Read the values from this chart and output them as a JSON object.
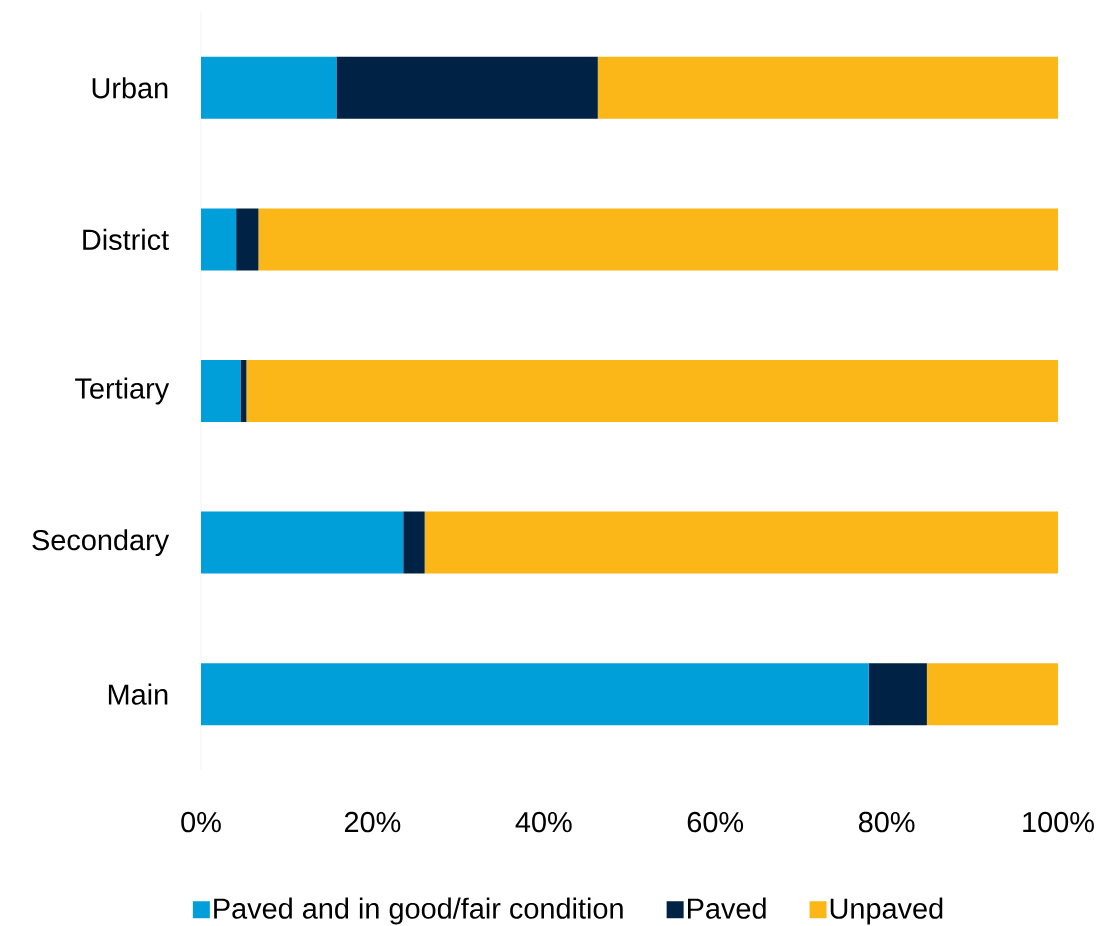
{
  "chart_data": {
    "type": "bar",
    "orientation": "horizontal",
    "stacked": true,
    "categories": [
      "Urban",
      "District",
      "Tertiary",
      "Secondary",
      "Main"
    ],
    "series": [
      {
        "name": "Paved and in good/fair condition",
        "color": "#009fda",
        "values": [
          15.8,
          4.1,
          4.6,
          23.6,
          77.9
        ]
      },
      {
        "name": "Paved",
        "color": "#002244",
        "values": [
          30.5,
          2.6,
          0.7,
          2.5,
          6.8
        ]
      },
      {
        "name": "Unpaved",
        "color": "#fbb617",
        "values": [
          53.7,
          93.3,
          94.7,
          73.9,
          15.3
        ]
      }
    ],
    "xlim": [
      0,
      100
    ],
    "xticks": [
      {
        "value": 0,
        "label": "0%"
      },
      {
        "value": 20,
        "label": "20%"
      },
      {
        "value": 40,
        "label": "40%"
      },
      {
        "value": 60,
        "label": "60%"
      },
      {
        "value": 80,
        "label": "80%"
      },
      {
        "value": 100,
        "label": "100%"
      }
    ],
    "legend": "bottom"
  }
}
